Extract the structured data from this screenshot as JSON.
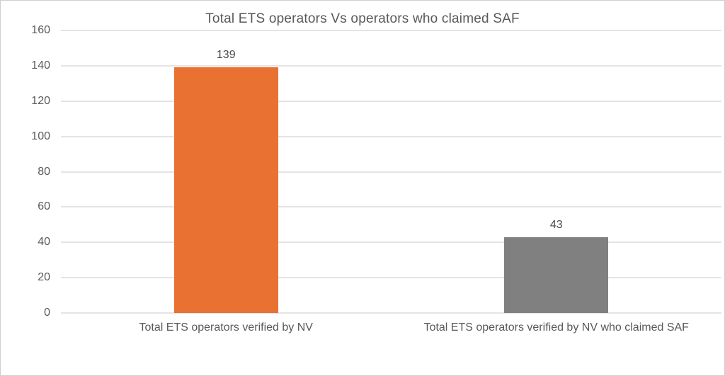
{
  "chart_data": {
    "type": "bar",
    "title": "Total ETS operators Vs operators who claimed SAF",
    "categories": [
      "Total ETS operators verified by NV",
      "Total ETS operators verified by NV who claimed SAF"
    ],
    "values": [
      139,
      43
    ],
    "data_labels": [
      "139",
      "43"
    ],
    "bar_colors": [
      "#e97132",
      "#808080"
    ],
    "xlabel": "",
    "ylabel": "",
    "ylim": [
      0,
      160
    ],
    "yticks": [
      0,
      20,
      40,
      60,
      80,
      100,
      120,
      140,
      160
    ],
    "grid": true,
    "legend": false
  },
  "style": {
    "text_color": "#595959",
    "data_label_color": "#4a4a4a",
    "gridline_color": "#e4e4e4",
    "border_color": "#cfcfcf",
    "background_color": "#ffffff"
  }
}
